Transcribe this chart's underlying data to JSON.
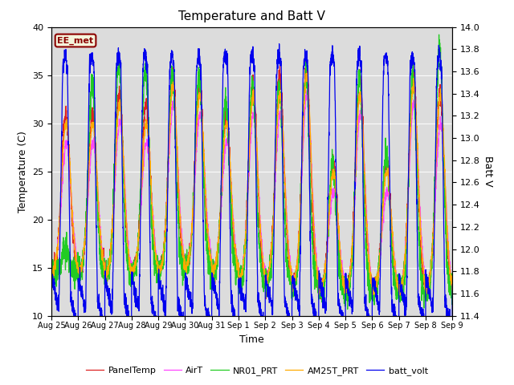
{
  "title": "Temperature and Batt V",
  "xlabel": "Time",
  "ylabel_left": "Temperature (C)",
  "ylabel_right": "Batt V",
  "ylim_left": [
    10,
    40
  ],
  "ylim_right": [
    11.4,
    14.0
  ],
  "annotation_text": "EE_met",
  "annotation_color": "#8B0000",
  "annotation_bg": "#f5f5dc",
  "plot_bg": "#dcdcdc",
  "fig_bg": "#ffffff",
  "x_tick_labels": [
    "Aug 25",
    "Aug 26",
    "Aug 27",
    "Aug 28",
    "Aug 29",
    "Aug 30",
    "Aug 31",
    "Sep 1",
    "Sep 2",
    "Sep 3",
    "Sep 4",
    "Sep 5",
    "Sep 6",
    "Sep 7",
    "Sep 8",
    "Sep 9"
  ],
  "legend_entries": [
    {
      "label": "PanelTemp",
      "color": "#dd2222"
    },
    {
      "label": "AirT",
      "color": "#ff44ff"
    },
    {
      "label": "NR01_PRT",
      "color": "#22cc22"
    },
    {
      "label": "AM25T_PRT",
      "color": "#ffaa00"
    },
    {
      "label": "batt_volt",
      "color": "#0000ee"
    }
  ],
  "num_days": 15,
  "title_fontsize": 11,
  "label_fontsize": 9,
  "tick_fontsize": 8,
  "xtick_fontsize": 7,
  "lw": 0.9
}
